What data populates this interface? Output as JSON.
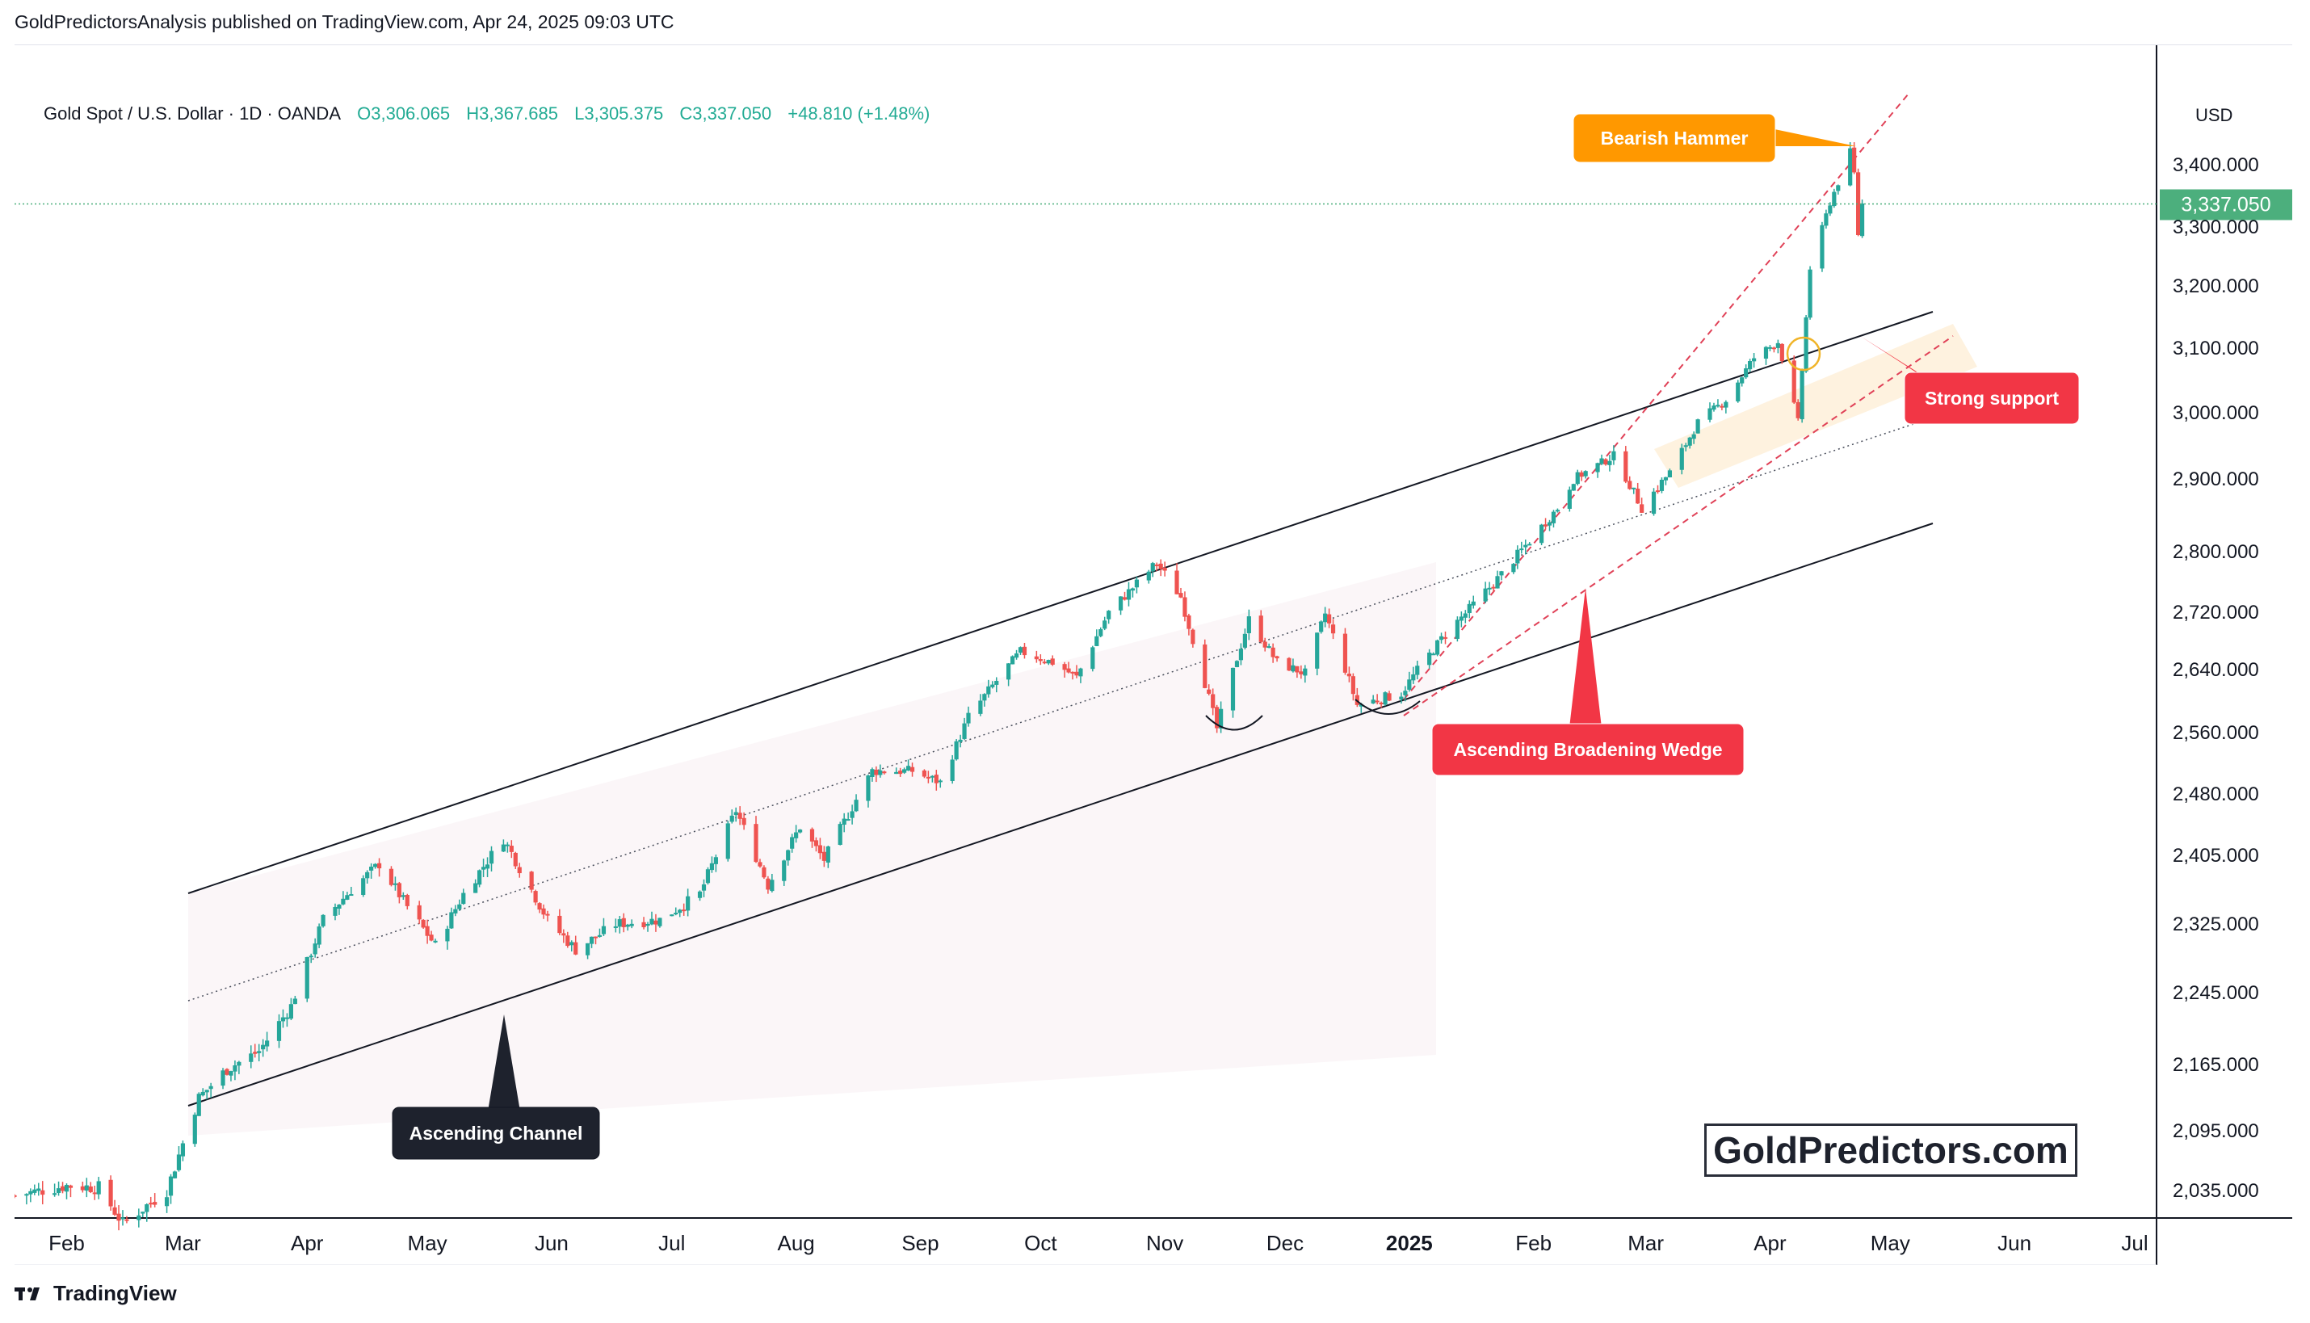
{
  "header": {
    "publisher": "GoldPredictorsAnalysis published on TradingView.com, Apr 24, 2025 09:03 UTC"
  },
  "legend": {
    "symbol": "Gold Spot / U.S. Dollar · 1D · OANDA",
    "open": "O3,306.065",
    "high": "H3,367.685",
    "low": "L3,305.375",
    "close": "C3,337.050",
    "change": "+48.810 (+1.48%)"
  },
  "price_axis": {
    "currency": "USD",
    "current_price_label": "3,337.050"
  },
  "watermark": "GoldPredictors.com",
  "footer": {
    "brand": "TradingView"
  },
  "colors": {
    "up": "#26a69a",
    "down": "#ef5350",
    "orange_callout": "#ff9800",
    "red_callout": "#f23645",
    "dark_callout": "#1e222d",
    "current_price": "#4caf7d"
  },
  "icons": [
    "tradingview-logo-icon"
  ],
  "chart_data": {
    "type": "candlestick",
    "title": "Gold Spot / U.S. Dollar · 1D · OANDA",
    "y_ticks": [
      "3,400.000",
      "3,300.000",
      "3,200.000",
      "3,100.000",
      "3,000.000",
      "2,900.000",
      "2,800.000",
      "2,720.000",
      "2,640.000",
      "2,560.000",
      "2,480.000",
      "2,405.000",
      "2,325.000",
      "2,245.000",
      "2,165.000",
      "2,095.000",
      "2,035.000"
    ],
    "y_tick_values": [
      3400,
      3300,
      3200,
      3100,
      3000,
      2900,
      2800,
      2720,
      2640,
      2560,
      2480,
      2405,
      2325,
      2245,
      2165,
      2095,
      2035
    ],
    "x_ticks": [
      {
        "label": "Feb",
        "date": "2024-02-01"
      },
      {
        "label": "Mar",
        "date": "2024-03-01"
      },
      {
        "label": "Apr",
        "date": "2024-04-01"
      },
      {
        "label": "May",
        "date": "2024-05-01"
      },
      {
        "label": "Jun",
        "date": "2024-06-01"
      },
      {
        "label": "Jul",
        "date": "2024-07-01"
      },
      {
        "label": "Aug",
        "date": "2024-08-01"
      },
      {
        "label": "Sep",
        "date": "2024-09-01"
      },
      {
        "label": "Oct",
        "date": "2024-10-01"
      },
      {
        "label": "Nov",
        "date": "2024-11-01"
      },
      {
        "label": "Dec",
        "date": "2024-12-01"
      },
      {
        "label": "2025",
        "date": "2025-01-01",
        "bold": true
      },
      {
        "label": "Feb",
        "date": "2025-02-01"
      },
      {
        "label": "Mar",
        "date": "2025-03-01"
      },
      {
        "label": "Apr",
        "date": "2025-04-01"
      },
      {
        "label": "May",
        "date": "2025-05-01"
      },
      {
        "label": "Jun",
        "date": "2025-06-01"
      },
      {
        "label": "Jul",
        "date": "2025-07-01"
      }
    ],
    "closes": [
      {
        "date": "2024-01-19",
        "close": 2030
      },
      {
        "date": "2024-02-01",
        "close": 2040
      },
      {
        "date": "2024-02-09",
        "close": 2038
      },
      {
        "date": "2024-02-15",
        "close": 2002
      },
      {
        "date": "2024-02-26",
        "close": 2035
      },
      {
        "date": "2024-03-05",
        "close": 2130
      },
      {
        "date": "2024-03-12",
        "close": 2160
      },
      {
        "date": "2024-03-20",
        "close": 2180
      },
      {
        "date": "2024-03-28",
        "close": 2230
      },
      {
        "date": "2024-04-05",
        "close": 2330
      },
      {
        "date": "2024-04-12",
        "close": 2365
      },
      {
        "date": "2024-04-19",
        "close": 2395
      },
      {
        "date": "2024-04-26",
        "close": 2345
      },
      {
        "date": "2024-05-03",
        "close": 2300
      },
      {
        "date": "2024-05-10",
        "close": 2360
      },
      {
        "date": "2024-05-20",
        "close": 2425
      },
      {
        "date": "2024-05-31",
        "close": 2330
      },
      {
        "date": "2024-06-07",
        "close": 2295
      },
      {
        "date": "2024-06-17",
        "close": 2325
      },
      {
        "date": "2024-06-28",
        "close": 2330
      },
      {
        "date": "2024-07-08",
        "close": 2360
      },
      {
        "date": "2024-07-17",
        "close": 2460
      },
      {
        "date": "2024-07-25",
        "close": 2370
      },
      {
        "date": "2024-08-02",
        "close": 2440
      },
      {
        "date": "2024-08-08",
        "close": 2400
      },
      {
        "date": "2024-08-20",
        "close": 2510
      },
      {
        "date": "2024-08-30",
        "close": 2510
      },
      {
        "date": "2024-09-06",
        "close": 2495
      },
      {
        "date": "2024-09-13",
        "close": 2580
      },
      {
        "date": "2024-09-26",
        "close": 2665
      },
      {
        "date": "2024-10-04",
        "close": 2650
      },
      {
        "date": "2024-10-10",
        "close": 2630
      },
      {
        "date": "2024-10-18",
        "close": 2720
      },
      {
        "date": "2024-10-30",
        "close": 2785
      },
      {
        "date": "2024-11-05",
        "close": 2740
      },
      {
        "date": "2024-11-14",
        "close": 2565
      },
      {
        "date": "2024-11-22",
        "close": 2710
      },
      {
        "date": "2024-11-29",
        "close": 2650
      },
      {
        "date": "2024-12-06",
        "close": 2635
      },
      {
        "date": "2024-12-11",
        "close": 2718
      },
      {
        "date": "2024-12-19",
        "close": 2595
      },
      {
        "date": "2024-12-30",
        "close": 2610
      },
      {
        "date": "2025-01-10",
        "close": 2690
      },
      {
        "date": "2025-01-24",
        "close": 2770
      },
      {
        "date": "2025-02-07",
        "close": 2860
      },
      {
        "date": "2025-02-11",
        "close": 2900
      },
      {
        "date": "2025-02-21",
        "close": 2935
      },
      {
        "date": "2025-02-28",
        "close": 2860
      },
      {
        "date": "2025-03-07",
        "close": 2910
      },
      {
        "date": "2025-03-14",
        "close": 2985
      },
      {
        "date": "2025-03-21",
        "close": 3020
      },
      {
        "date": "2025-03-28",
        "close": 3085
      },
      {
        "date": "2025-04-03",
        "close": 3110
      },
      {
        "date": "2025-04-08",
        "close": 2985
      },
      {
        "date": "2025-04-11",
        "close": 3230
      },
      {
        "date": "2025-04-16",
        "close": 3340
      },
      {
        "date": "2025-04-21",
        "close": 3420
      },
      {
        "date": "2025-04-22",
        "close": 3385
      },
      {
        "date": "2025-04-23",
        "close": 3288
      },
      {
        "date": "2025-04-24",
        "close": 3337.05
      }
    ],
    "annotations": [
      {
        "text": "Bearish Hammer",
        "style": "orange"
      },
      {
        "text": "Strong support",
        "style": "red"
      },
      {
        "text": "Ascending Broadening Wedge",
        "style": "red"
      },
      {
        "text": "Ascending Channel",
        "style": "dark"
      }
    ]
  }
}
